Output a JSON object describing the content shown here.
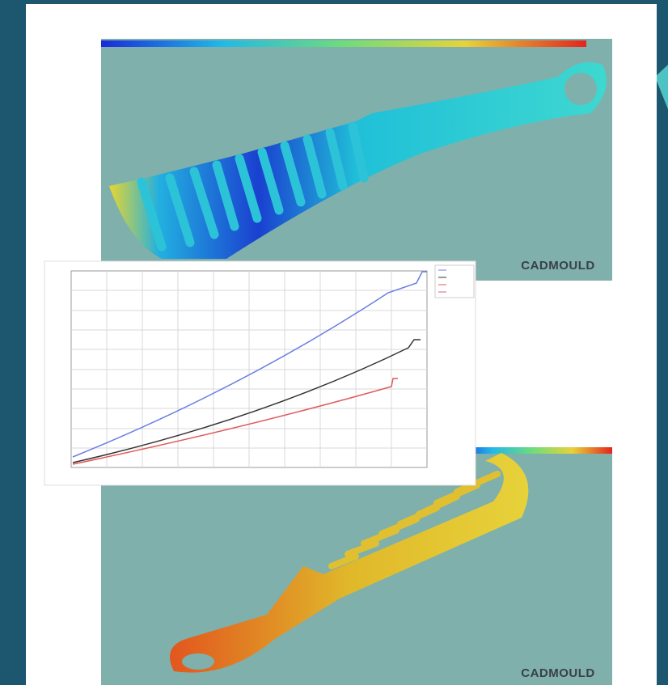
{
  "panels": [
    {
      "logo": "CADMOULD"
    },
    {
      "logo": "CADMOULD"
    }
  ]
}
